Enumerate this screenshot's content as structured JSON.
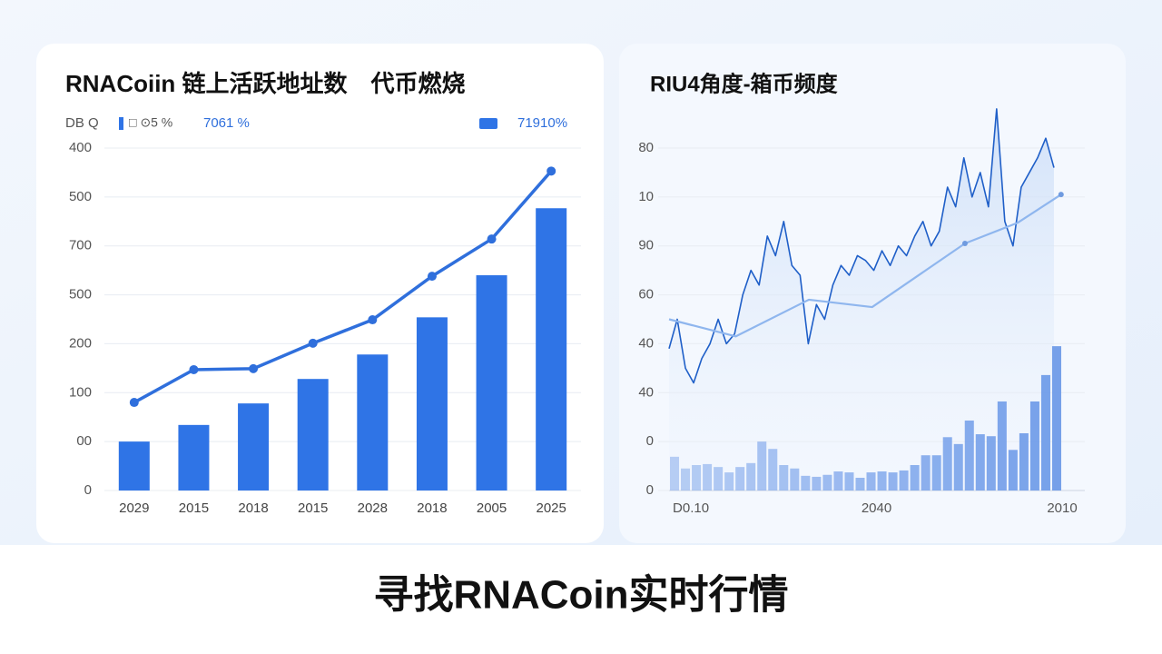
{
  "caption": "寻找RNACoin实时行情",
  "chart_data": [
    {
      "type": "bar",
      "title": "RNACoiin 链上活跃地址数　代币燃烧",
      "subtitle": "DB Q",
      "note": "□ ⊙5 %",
      "categories": [
        "2029",
        "2015",
        "2018",
        "2015",
        "2028",
        "2018",
        "2005",
        "2025"
      ],
      "series": [
        {
          "name": "71910%",
          "type": "bar",
          "color": "#2f74e6",
          "values": [
            100,
            134,
            178,
            228,
            278,
            354,
            440,
            577
          ]
        },
        {
          "name": "7061 %",
          "type": "line",
          "color": "#2f6fdc",
          "values": [
            180,
            247,
            249,
            301,
            349,
            438,
            514,
            653
          ]
        }
      ],
      "ylim": [
        0,
        700
      ],
      "yticks": [
        0,
        {
          "value": 100,
          "label": "00"
        },
        {
          "value": 200,
          "label": "100"
        },
        {
          "value": 300,
          "label": "200"
        },
        {
          "value": 400,
          "label": "500"
        },
        {
          "value": 500,
          "label": "700"
        },
        {
          "value": 600,
          "label": "500"
        },
        {
          "value": 700,
          "label": "400"
        }
      ],
      "grid": true
    },
    {
      "type": "line",
      "title": "RIU4角度-箱币频度",
      "series": [
        {
          "type": "line",
          "color": "#1f5fc8",
          "x": [
            0,
            0.75,
            1.5,
            2.25,
            3,
            3.75,
            4.5,
            5.25,
            6,
            6.75,
            7.5,
            8.25,
            9,
            9.75,
            10.5,
            11.25,
            12,
            12.75,
            13.5,
            14.25,
            15,
            15.75,
            16.5,
            17.25,
            18,
            18.75,
            19.5,
            20.25,
            21,
            21.75,
            22.5,
            23.25,
            24,
            24.75,
            25.5,
            26.25,
            27,
            27.75,
            28.5,
            29.25,
            30,
            30.75,
            31.5,
            32.25,
            33,
            33.75,
            34.5,
            35.25
          ],
          "values": [
            29,
            35,
            25,
            22,
            27,
            30,
            35,
            30,
            32,
            40,
            45,
            42,
            52,
            48,
            55,
            46,
            44,
            30,
            38,
            35,
            42,
            46,
            44,
            48,
            47,
            45,
            49,
            46,
            50,
            48,
            52,
            55,
            50,
            53,
            62,
            58,
            68,
            60,
            65,
            58,
            78,
            55,
            50,
            62,
            65,
            68,
            72,
            66
          ]
        },
        {
          "type": "line",
          "color": "#8fb6ee",
          "x": [
            0,
            6.1,
            12.8,
            18.6,
            27.1,
            31.9,
            35.9
          ],
          "values": [
            35,
            31.5,
            39,
            37.5,
            50.5,
            54.7,
            60.5
          ]
        },
        {
          "type": "bar",
          "color": "#6d9ae8",
          "values": [
            6.9,
            4.5,
            5.2,
            5.4,
            4.8,
            3.7,
            4.8,
            5.6,
            10.0,
            8.5,
            5.2,
            4.5,
            3.0,
            2.8,
            3.2,
            3.9,
            3.7,
            2.6,
            3.7,
            3.9,
            3.7,
            4.1,
            5.2,
            7.2,
            7.2,
            10.9,
            9.5,
            14.3,
            11.5,
            11.1,
            18.2,
            8.3,
            11.7,
            18.2,
            23.6,
            29.5
          ]
        }
      ],
      "xlim": [
        0,
        36
      ],
      "xticks": [
        {
          "value": 2,
          "label": "D0.10"
        },
        {
          "value": 19,
          "label": "2040"
        },
        {
          "value": 36,
          "label": "2010"
        }
      ],
      "ylim": [
        0,
        70
      ],
      "yticks": [
        0,
        {
          "value": 10,
          "label": "0"
        },
        {
          "value": 20,
          "label": "40"
        },
        {
          "value": 30,
          "label": "40"
        },
        {
          "value": 40,
          "label": "60"
        },
        {
          "value": 50,
          "label": "90"
        },
        {
          "value": 60,
          "label": "10"
        },
        {
          "value": 70,
          "label": "80"
        }
      ],
      "grid": true
    }
  ]
}
